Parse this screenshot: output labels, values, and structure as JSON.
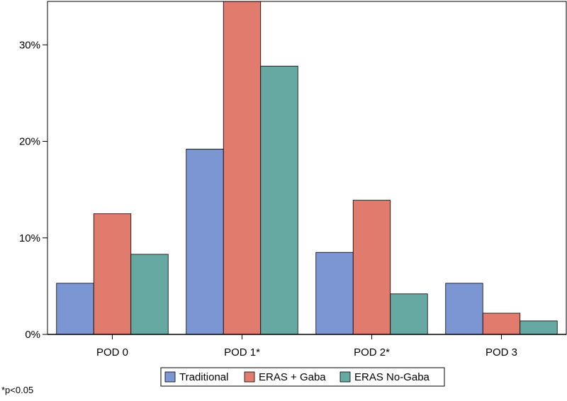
{
  "chart_data": {
    "type": "bar",
    "categories": [
      "POD 0",
      "POD 1*",
      "POD 2*",
      "POD 3"
    ],
    "series": [
      {
        "name": "Traditional",
        "color": "#7b96d2",
        "values": [
          5.3,
          19.2,
          8.5,
          5.3
        ]
      },
      {
        "name": "ERAS + Gaba",
        "color": "#e07b6e",
        "values": [
          12.5,
          34.5,
          13.9,
          2.2
        ]
      },
      {
        "name": "ERAS No-Gaba",
        "color": "#66a9a2",
        "values": [
          8.3,
          27.8,
          4.2,
          1.4
        ]
      }
    ],
    "y_ticks": [
      "0%",
      "10%",
      "20%",
      "30%"
    ],
    "y_tick_values": [
      0,
      10,
      20,
      30
    ],
    "ylim": [
      0,
      34.5
    ],
    "legend_position": "bottom-center",
    "grid": false
  },
  "footnote": "*p<0.05"
}
